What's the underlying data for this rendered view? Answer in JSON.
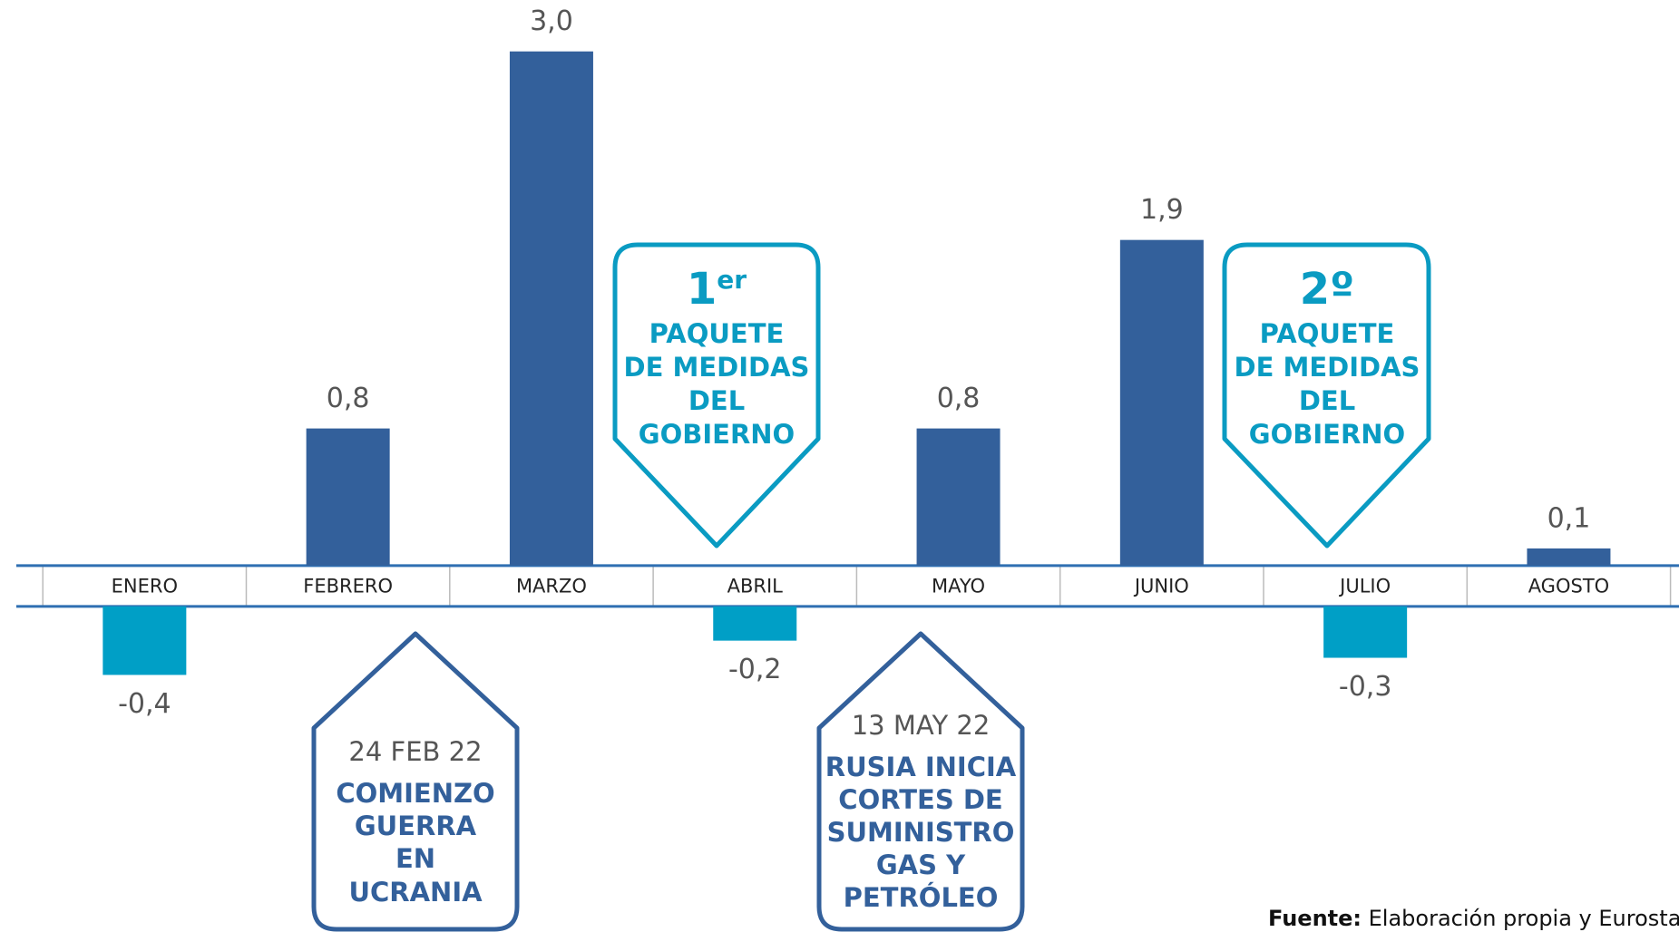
{
  "chart_data": {
    "type": "bar",
    "categories": [
      "ENERO",
      "FEBRERO",
      "MARZO",
      "ABRIL",
      "MAYO",
      "JUNIO",
      "JULIO",
      "AGOSTO"
    ],
    "values": [
      -0.4,
      0.8,
      3.0,
      -0.2,
      0.8,
      1.9,
      -0.3,
      0.1
    ],
    "value_labels": [
      "-0,4",
      "0,8",
      "3,0",
      "-0,2",
      "0,8",
      "1,9",
      "-0,3",
      "0,1"
    ],
    "colors": [
      "#009fc6",
      "#33609b",
      "#33609b",
      "#009fc6",
      "#33609b",
      "#33609b",
      "#009fc6",
      "#33609b"
    ],
    "ylim": [
      -1.9,
      3.3
    ],
    "annotations": [
      {
        "number": "1",
        "suffix": "er",
        "lines": [
          "PAQUETE",
          "DE MEDIDAS",
          "DEL",
          "GOBIERNO"
        ]
      },
      {
        "number": "2º",
        "lines": [
          "PAQUETE",
          "DE MEDIDAS",
          "DEL",
          "GOBIERNO"
        ]
      },
      {
        "date": "24 FEB 22",
        "lines": [
          "COMIENZO",
          "GUERRA",
          "EN",
          "UCRANIA"
        ]
      },
      {
        "date": "13 MAY 22",
        "lines": [
          "RUSIA INICIA",
          "CORTES DE",
          "SUMINISTRO",
          "GAS Y",
          "PETRÓLEO"
        ]
      }
    ],
    "source": {
      "label": "Fuente:",
      "text": "Elaboración propia y Eurostat"
    }
  }
}
